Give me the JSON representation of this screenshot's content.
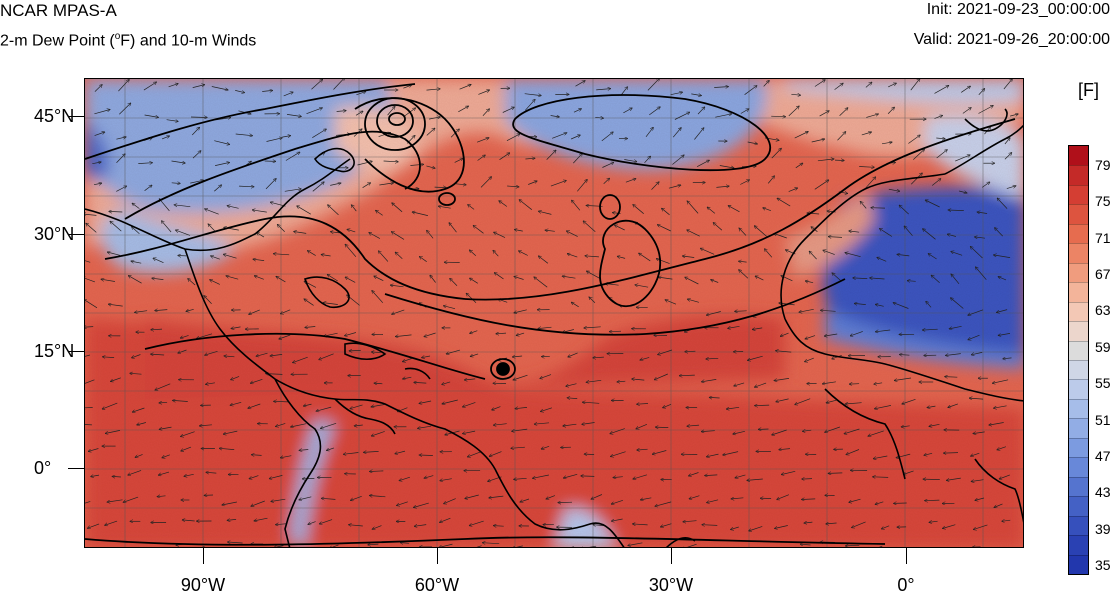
{
  "header": {
    "title": "NCAR MPAS-A",
    "subtitle_pre": "2-m Dew Point (",
    "subtitle_sup": "o",
    "subtitle_post": "F) and 10-m Winds",
    "init": "Init: 2021-09-23_00:00:00",
    "valid": "Valid: 2021-09-26_20:00:00"
  },
  "map": {
    "lat_labels": [
      "45°N",
      "30°N",
      "15°N",
      "0°"
    ],
    "lon_labels": [
      "90°W",
      "60°W",
      "30°W",
      "0°"
    ],
    "features": [
      "dew-point-field",
      "wind-vectors",
      "pressure-contours",
      "coastlines",
      "lat-lon-grid"
    ]
  },
  "colorbar": {
    "units": "[F]",
    "labels": [
      "79",
      "75",
      "71",
      "67",
      "63",
      "59",
      "55",
      "51",
      "47",
      "43",
      "39",
      "35"
    ],
    "colors": [
      "#b0101a",
      "#c42a28",
      "#d43e33",
      "#dd543f",
      "#e66c4f",
      "#ec8465",
      "#f09c7e",
      "#f3b49a",
      "#f3c8b5",
      "#ecd6cc",
      "#dcdcdc",
      "#cfd6e6",
      "#bccbea",
      "#a6bde9",
      "#92ade5",
      "#7c9be0",
      "#6888d9",
      "#5574cf",
      "#4461c5",
      "#3650bc",
      "#2a41b3",
      "#2237ad"
    ]
  },
  "colors": {
    "warm": "#e0604a",
    "hot": "#d84236",
    "cool": "#7d9be0",
    "cold": "#3450be"
  }
}
